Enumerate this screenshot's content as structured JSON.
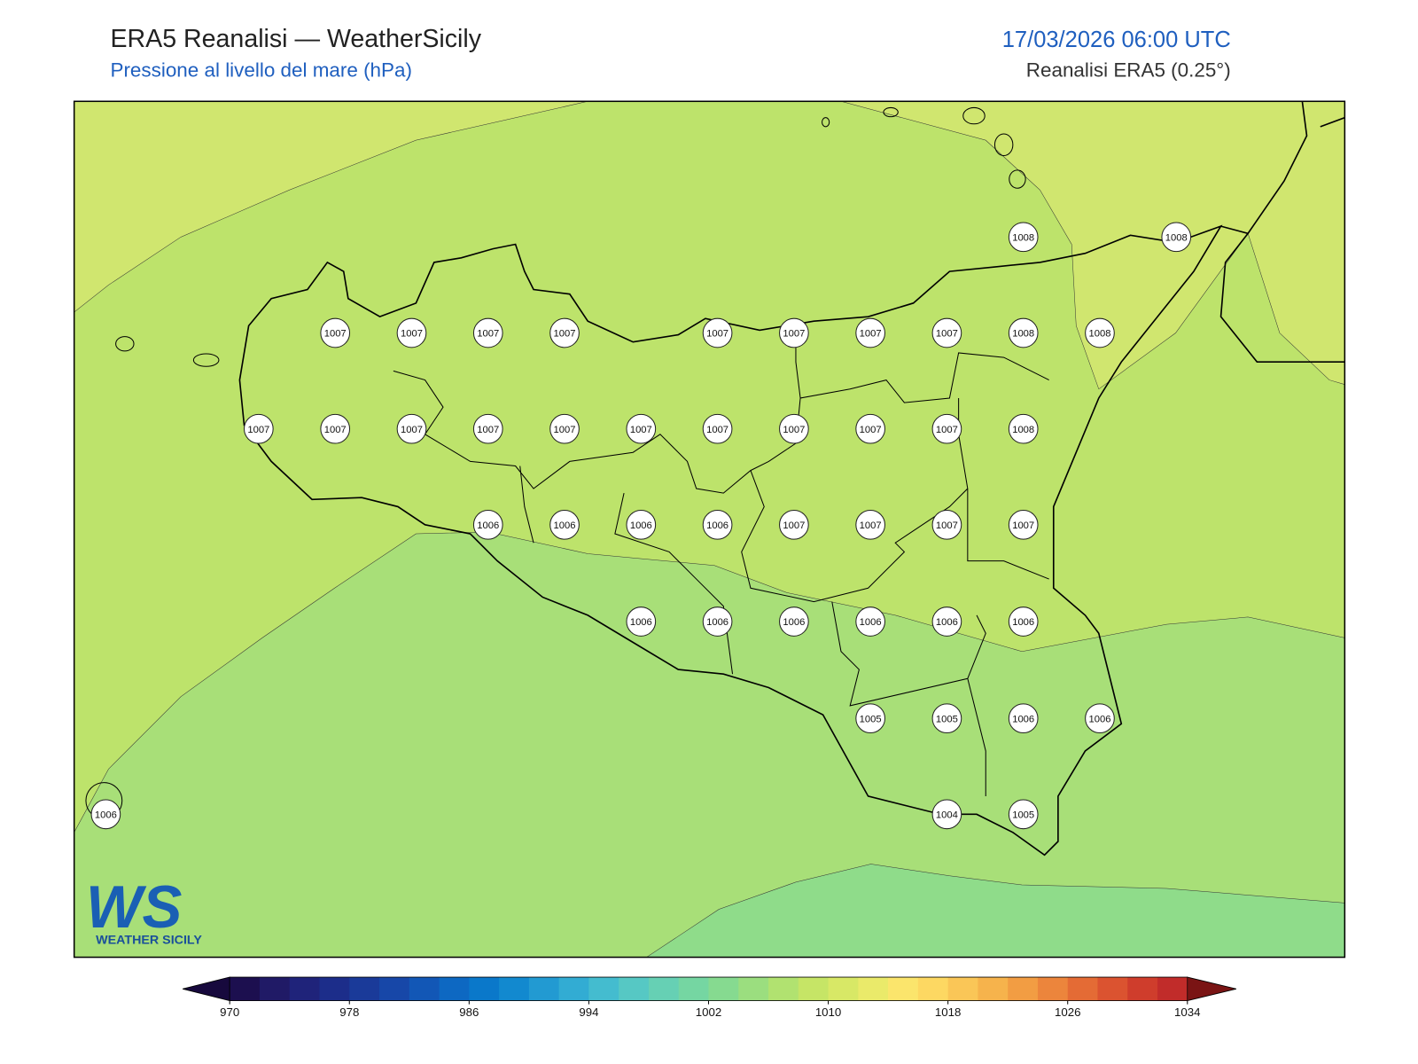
{
  "header": {
    "title": "ERA5 Reanalisi — WeatherSicily",
    "subtitle": "Pressione al livello del mare (hPa)",
    "datetime": "17/03/2026 06:00 UTC",
    "source": "Reanalisi ERA5 (0.25°)"
  },
  "stations": [
    1008,
    1008,
    1007,
    1007,
    1007,
    1007,
    1007,
    1007,
    1007,
    1007,
    1008,
    1008,
    1007,
    1007,
    1007,
    1007,
    1007,
    1007,
    1007,
    1007,
    1007,
    1007,
    1008,
    1006,
    1006,
    1006,
    1006,
    1007,
    1007,
    1007,
    1007,
    1006,
    1006,
    1006,
    1006,
    1006,
    1006,
    1005,
    1005,
    1006,
    1006,
    1006,
    1004,
    1005
  ],
  "colorbar": {
    "ticks": [
      970,
      978,
      986,
      994,
      1002,
      1010,
      1018,
      1026,
      1034
    ],
    "colors": [
      "#1c0f4f",
      "#201a66",
      "#1f237a",
      "#1c2d8a",
      "#1a3a99",
      "#1747a8",
      "#1257b6",
      "#0d68c2",
      "#0a78ca",
      "#1289cf",
      "#229ad2",
      "#32acd3",
      "#44bccf",
      "#56c8c4",
      "#66d0b4",
      "#75d6a2",
      "#86da90",
      "#9bde7f",
      "#b1e270",
      "#c6e566",
      "#d8e866",
      "#eaea6a",
      "#fbe56c",
      "#fdd862",
      "#fac657",
      "#f6b34c",
      "#f29d43",
      "#ec853c",
      "#e46b35",
      "#db5330",
      "#cf3d2c",
      "#c12c2a"
    ],
    "under": "#17093d",
    "over": "#7a1414"
  },
  "logo": {
    "mark": "WS",
    "text": "WEATHER SICILY"
  }
}
